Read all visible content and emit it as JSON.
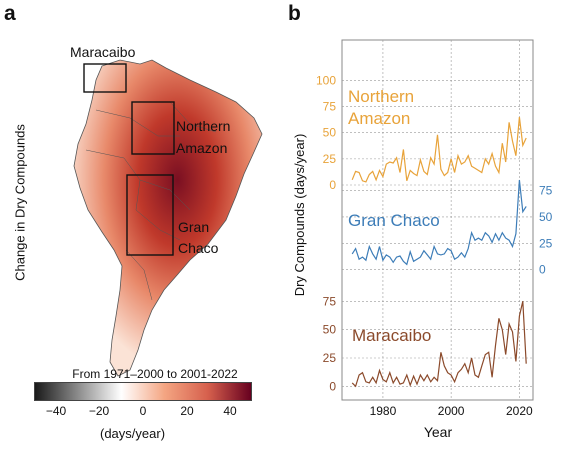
{
  "panel_a": {
    "letter": "a",
    "side_label": "Change in Dry Compounds",
    "regions": [
      "Maracaibo",
      "Northern Amazon",
      "Gran Chaco"
    ],
    "region_label_lines": {
      "maracaibo": "Maracaibo",
      "northern_amazon_1": "Northern",
      "northern_amazon_2": "Amazon",
      "gran_chaco_1": "Gran",
      "gran_chaco_2": "Chaco"
    },
    "colorbar": {
      "title": "From 1971–2000 to 2001-2022",
      "unit": "(days/year)",
      "ticks": [
        "−40",
        "−20",
        "0",
        "20",
        "40"
      ],
      "range": [
        -50,
        50
      ],
      "colors": [
        "#1a1a1a",
        "#8c8c8c",
        "#ffffff",
        "#f4a582",
        "#d6604d",
        "#67001f"
      ]
    }
  },
  "panel_b": {
    "letter": "b",
    "ylabel": "Dry Compounds (days/year)",
    "xlabel": "Year",
    "colors": {
      "amazon": "#e8a33a",
      "chaco": "#3d7db8",
      "maracaibo": "#8b4a2b"
    }
  },
  "chart_data": {
    "type": "line",
    "xlabel": "Year",
    "ylabel": "Dry Compounds (days/year)",
    "xlim": [
      1968,
      2024
    ],
    "xticks": [
      1980,
      2000,
      2020
    ],
    "x": [
      1971,
      1972,
      1973,
      1974,
      1975,
      1976,
      1977,
      1978,
      1979,
      1980,
      1981,
      1982,
      1983,
      1984,
      1985,
      1986,
      1987,
      1988,
      1989,
      1990,
      1991,
      1992,
      1993,
      1994,
      1995,
      1996,
      1997,
      1998,
      1999,
      2000,
      2001,
      2002,
      2003,
      2004,
      2005,
      2006,
      2007,
      2008,
      2009,
      2010,
      2011,
      2012,
      2013,
      2014,
      2015,
      2016,
      2017,
      2018,
      2019,
      2020,
      2021,
      2022
    ],
    "series": [
      {
        "name": "Northern Amazon",
        "color": "#e8a33a",
        "yticks": [
          "0",
          "25",
          "50",
          "75",
          "100"
        ],
        "ylim": [
          0,
          110
        ],
        "values": [
          5,
          13,
          12,
          4,
          3,
          10,
          13,
          5,
          14,
          8,
          20,
          22,
          21,
          26,
          12,
          34,
          4,
          14,
          11,
          9,
          24,
          13,
          10,
          26,
          20,
          48,
          15,
          9,
          12,
          25,
          12,
          28,
          20,
          22,
          28,
          18,
          16,
          14,
          12,
          25,
          20,
          30,
          18,
          12,
          40,
          22,
          60,
          42,
          28,
          65,
          38,
          45
        ]
      },
      {
        "name": "Gran Chaco",
        "color": "#3d7db8",
        "yticks": [
          "0",
          "25",
          "50",
          "75"
        ],
        "ylim": [
          -5,
          85
        ],
        "values": [
          15,
          20,
          10,
          12,
          9,
          22,
          15,
          10,
          22,
          9,
          14,
          12,
          7,
          12,
          13,
          8,
          5,
          17,
          8,
          10,
          12,
          18,
          14,
          10,
          22,
          15,
          14,
          15,
          20,
          18,
          10,
          12,
          16,
          12,
          20,
          35,
          28,
          30,
          28,
          35,
          32,
          26,
          34,
          28,
          35,
          30,
          28,
          22,
          34,
          85,
          55,
          60
        ]
      },
      {
        "name": "Maracaibo",
        "color": "#8b4a2b",
        "yticks": [
          "0",
          "25",
          "50",
          "75"
        ],
        "ylim": [
          -5,
          85
        ],
        "values": [
          3,
          0,
          10,
          12,
          4,
          3,
          8,
          3,
          14,
          6,
          4,
          12,
          3,
          8,
          2,
          3,
          10,
          1,
          9,
          2,
          10,
          5,
          10,
          4,
          8,
          5,
          30,
          18,
          12,
          10,
          4,
          12,
          15,
          20,
          12,
          25,
          10,
          8,
          18,
          28,
          30,
          8,
          36,
          60,
          50,
          28,
          55,
          48,
          22,
          62,
          75,
          20
        ]
      }
    ]
  }
}
